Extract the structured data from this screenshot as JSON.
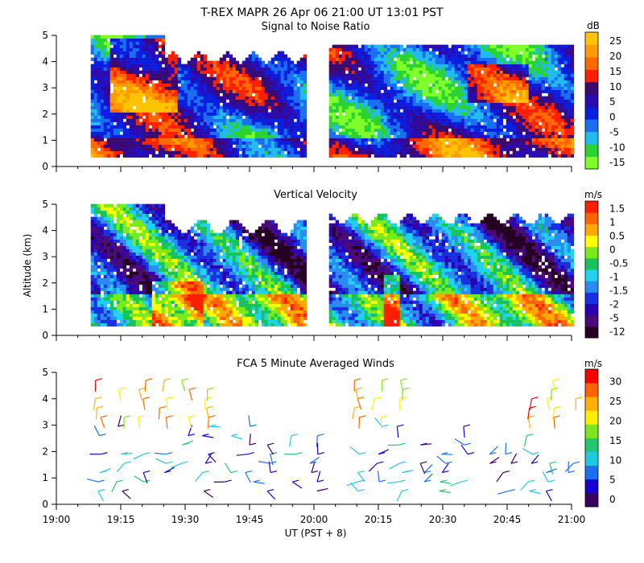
{
  "title": "T-REX  MAPR 26 Apr 06  21:00 UT  13:01  PST",
  "x_axis": {
    "label": "UT  (PST + 8)",
    "ticks": [
      "19:00",
      "19:15",
      "19:30",
      "19:45",
      "20:00",
      "20:15",
      "20:30",
      "20:45",
      "21:00"
    ],
    "range_min": [
      0,
      120
    ]
  },
  "y_axis": {
    "label": "Altitude (km)",
    "ticks": [
      "0",
      "1",
      "2",
      "3",
      "4",
      "5"
    ],
    "range": [
      0,
      5
    ]
  },
  "panels": {
    "snr": {
      "title": "Signal to Noise Ratio",
      "unit": "dB",
      "colorbar_labels": [
        "25",
        "20",
        "15",
        "10",
        "5",
        "0",
        "-5",
        "-10",
        "-15"
      ]
    },
    "vv": {
      "title": "Vertical Velocity",
      "unit": "m/s",
      "colorbar_labels": [
        "1.5",
        "1",
        "0.5",
        "0",
        "-0.5",
        "-1",
        "-1.5",
        "-2",
        "-5",
        "-12"
      ]
    },
    "wind": {
      "title": "FCA 5 Minute Averaged Winds",
      "unit": "m/s",
      "colorbar_labels": [
        "30",
        "25",
        "20",
        "15",
        "10",
        "5",
        "0"
      ]
    }
  },
  "colors": {
    "snr_scale": [
      "#7fff2a",
      "#2ad232",
      "#22bbee",
      "#1a6ff0",
      "#0a1ee0",
      "#2b0bb0",
      "#3a0a6e",
      "#ff2000",
      "#ff6a00",
      "#ff9a00",
      "#ffc400"
    ],
    "vv_scale": [
      "#250020",
      "#4a0a7a",
      "#2a00b4",
      "#1830e0",
      "#2a8cf0",
      "#20d2f0",
      "#18c45a",
      "#78ea1e",
      "#ffff00",
      "#ffa800",
      "#ff6400",
      "#ff1e00"
    ],
    "wind_scale": [
      "#3a0060",
      "#1800d0",
      "#1a70f0",
      "#20c8e0",
      "#22c86e",
      "#7ee61e",
      "#ffee00",
      "#ffb000",
      "#ff6400",
      "#ff0000"
    ]
  },
  "chart_data": [
    {
      "type": "heatmap",
      "title": "Signal to Noise Ratio",
      "xlabel": "UT  (PST + 8)",
      "ylabel": "Altitude (km)",
      "xlim_min": [
        0,
        120
      ],
      "ylim_km": [
        0,
        5
      ],
      "colorbar_range_dB": [
        -15,
        27
      ],
      "data_gap_min": [
        58,
        63
      ]
    },
    {
      "type": "heatmap",
      "title": "Vertical Velocity",
      "xlabel": "UT  (PST + 8)",
      "ylabel": "Altitude (km)",
      "xlim_min": [
        0,
        120
      ],
      "ylim_km": [
        0,
        5
      ],
      "colorbar_range_ms": [
        -12,
        1.8
      ],
      "data_gap_min": [
        58,
        63
      ]
    },
    {
      "type": "scatter",
      "title": "FCA 5 Minute Averaged Winds",
      "xlabel": "UT  (PST + 8)",
      "ylabel": "Altitude (km)",
      "xlim_min": [
        0,
        120
      ],
      "ylim_km": [
        0,
        5
      ],
      "colorbar_range_ms": [
        0,
        31
      ],
      "barb_times_min": [
        10,
        15,
        20,
        25,
        30,
        35,
        40,
        45,
        50,
        55,
        60,
        70,
        75,
        80,
        85,
        90,
        95,
        100,
        105,
        110,
        115,
        120
      ]
    }
  ]
}
